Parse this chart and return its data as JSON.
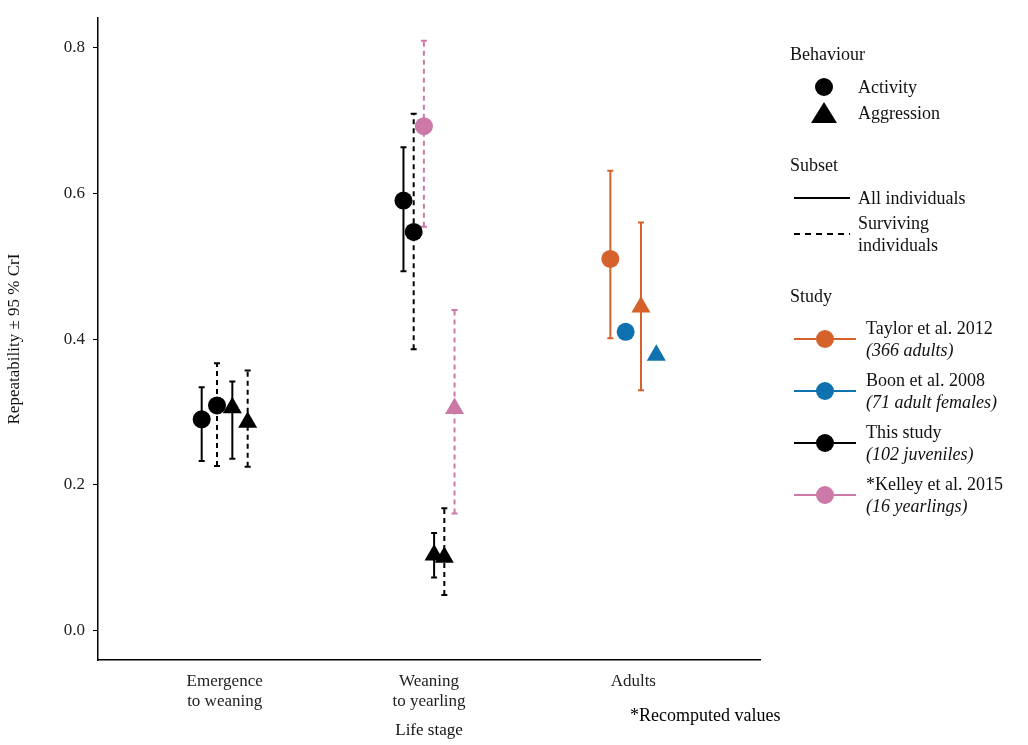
{
  "chart_data": {
    "type": "scatter",
    "xlabel": "Life stage",
    "ylabel": "Repeatability ± 95 % CrI",
    "legend_title": "Study",
    "legend": "right",
    "grid": false,
    "categories": [
      "Emergence\nto weaning",
      "Weaning\nto yearling",
      "Adults"
    ],
    "ylim": [
      -0.04,
      0.84
    ],
    "yticks": [
      {
        "value": 0,
        "label": "0.0"
      },
      {
        "value": 0.2,
        "label": "0.2"
      },
      {
        "value": 0.4,
        "label": "0.4"
      },
      {
        "value": 0.6,
        "label": "0.6"
      },
      {
        "value": 0.8,
        "label": "0.8"
      }
    ],
    "series": [
      {
        "name": "Taylor et al. 2012\n(366 adults)",
        "color": "#d4622a",
        "marker": "circle",
        "line_style": "solid",
        "values": [
          null,
          null,
          0.51
        ],
        "errors": [
          null,
          null,
          [
            0.401,
            0.631
          ]
        ]
      },
      {
        "name": "Boon et al. 2008\n(71 adult females)",
        "color": "#0f72b0",
        "marker": "circle",
        "line_style": "solid",
        "values": [
          null,
          null,
          0.41
        ],
        "errors": [
          null,
          null,
          null
        ]
      },
      {
        "color": "#d4622a",
        "marker": "triangle",
        "line_style": "solid",
        "values": [
          null,
          null,
          0.444
        ],
        "errors": [
          null,
          null,
          [
            0.33,
            0.56
          ]
        ]
      },
      {
        "color": "#0f72b0",
        "marker": "triangle",
        "line_style": "solid",
        "values": [
          null,
          null,
          0.378
        ],
        "errors": [
          null,
          null,
          null
        ]
      },
      {
        "name": "This study\n(102 juveniles)",
        "color": "#000000",
        "marker": "circle",
        "line_style": "solid",
        "values": [
          0.29,
          0.59,
          null
        ],
        "errors": [
          [
            0.233,
            0.334
          ],
          [
            0.493,
            0.663
          ],
          null
        ]
      },
      {
        "color": "#000000",
        "marker": "circle",
        "line_style": "dashed",
        "values": [
          0.309,
          0.547,
          null
        ],
        "errors": [
          [
            0.226,
            0.367
          ],
          [
            0.386,
            0.709
          ],
          null
        ]
      },
      {
        "name": "*Kelley et al. 2015\n(16 yearlings)",
        "color": "#cc79a7",
        "marker": "circle",
        "line_style": "dashed",
        "values": [
          null,
          0.692,
          null
        ],
        "errors": [
          null,
          [
            0.554,
            0.809
          ],
          null
        ]
      },
      {
        "color": "#000000",
        "marker": "triangle",
        "line_style": "solid",
        "values": [
          0.306,
          0.104,
          null
        ],
        "errors": [
          [
            0.236,
            0.342
          ],
          [
            0.073,
            0.134
          ],
          null
        ]
      },
      {
        "color": "#000000",
        "marker": "triangle",
        "line_style": "dashed",
        "values": [
          0.286,
          0.101,
          null
        ],
        "errors": [
          [
            0.225,
            0.357
          ],
          [
            0.049,
            0.168
          ],
          null
        ]
      },
      {
        "color": "#cc79a7",
        "marker": "triangle",
        "line_style": "dashed",
        "values": [
          null,
          0.305,
          null
        ],
        "errors": [
          null,
          [
            0.161,
            0.44
          ],
          null
        ]
      }
    ],
    "annotations": [
      "Behaviour",
      "Activity",
      "Aggression",
      "Subset",
      "All individuals",
      "Surviving\nindividuals",
      "*Recomputed values"
    ]
  }
}
